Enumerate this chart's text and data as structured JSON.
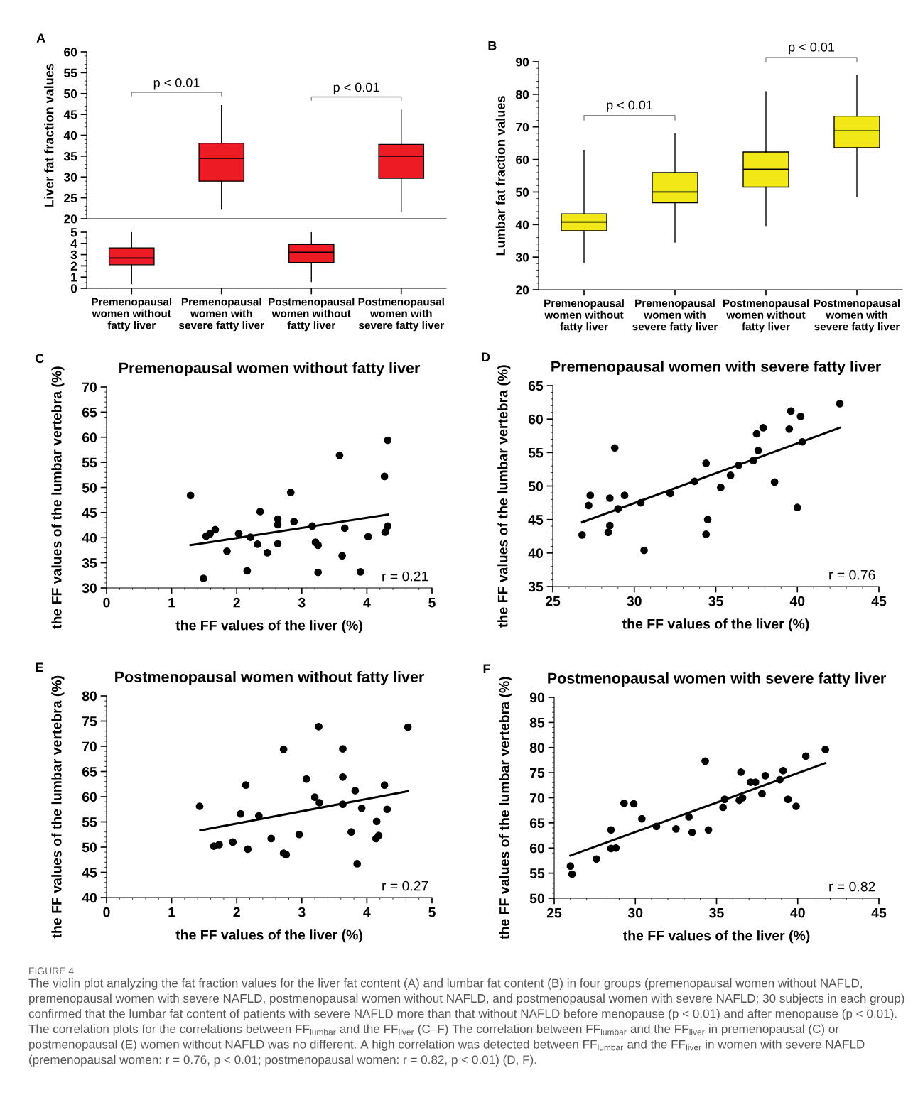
{
  "chart_data": [
    {
      "type": "box",
      "categories": [
        null,
        null,
        null,
        null
      ],
      "ylabel": "Liver fat fraction values",
      "ylim": [
        20,
        60
      ],
      "yticks": [
        20,
        25,
        30,
        35,
        40,
        45,
        50,
        55,
        60
      ],
      "annotations": [
        "A",
        "p < 0.01",
        "p < 0.01"
      ],
      "series": [
        {
          "color": "#ed1c24",
          "boxes": [
            null,
            {
              "low": 22.3,
              "q1": 29.0,
              "median": 34.5,
              "q3": 38.1,
              "high": 47.1
            },
            null,
            {
              "low": 21.6,
              "q1": 29.7,
              "median": 35.0,
              "q3": 37.8,
              "high": 46.0
            }
          ]
        }
      ]
    },
    {
      "type": "box",
      "categories": [
        "Premenopausal\nwomen without\nfatty liver",
        "Premenopausal\nwomen with\nsevere fatty liver",
        "Postmenopausal\nwomen without\nfatty liver",
        "Postmenopausal\nwomen with\nsevere fatty liver"
      ],
      "ylim": [
        0,
        5
      ],
      "yticks": [
        0,
        1,
        2,
        3,
        4,
        5
      ],
      "series": [
        {
          "color": "#ed1c24",
          "boxes": [
            {
              "low": 0.4,
              "q1": 2.1,
              "median": 2.7,
              "q3": 3.6,
              "high": 5.0
            },
            null,
            {
              "low": 0.6,
              "q1": 2.3,
              "median": 3.2,
              "q3": 3.9,
              "high": 5.0
            },
            null
          ]
        }
      ]
    },
    {
      "type": "box",
      "categories": [
        "Premenopausal\nwomen without\nfatty liver",
        "Premenopausal\nwomen with\nsevere fatty liver",
        "Postmenopausal\nwomen without\nfatty liver",
        "Postmenopausal\nwomen with\nsevere fatty liver"
      ],
      "ylabel": "Lumbar fat fraction values",
      "ylim": [
        20,
        90
      ],
      "yticks": [
        20,
        30,
        40,
        50,
        60,
        70,
        80,
        90
      ],
      "annotations": [
        "B",
        "p < 0.01",
        "p < 0.01"
      ],
      "series": [
        {
          "color": "#f2e717",
          "boxes": [
            {
              "low": 28.2,
              "q1": 38.1,
              "median": 40.8,
              "q3": 43.3,
              "high": 62.8
            },
            {
              "low": 34.6,
              "q1": 46.7,
              "median": 50.0,
              "q3": 56.0,
              "high": 67.9
            },
            {
              "low": 39.7,
              "q1": 51.5,
              "median": 57.0,
              "q3": 62.3,
              "high": 80.8
            },
            {
              "low": 48.6,
              "q1": 63.6,
              "median": 68.8,
              "q3": 73.3,
              "high": 85.7
            }
          ]
        }
      ]
    },
    {
      "type": "scatter",
      "title": "Premenopausal women without fatty liver",
      "xlabel": "the FF values of the liver (%)",
      "ylabel": "the FF values of the lumbar vertebra (%)",
      "xlim": [
        0,
        5
      ],
      "xticks": [
        0,
        1,
        2,
        3,
        4,
        5
      ],
      "ylim": [
        30,
        70
      ],
      "yticks": [
        30,
        35,
        40,
        45,
        50,
        55,
        60,
        65,
        70
      ],
      "annotations": [
        "C",
        "r = 0.21"
      ],
      "series": [
        {
          "type": "scatter",
          "marker": "circle",
          "color": "#000000",
          "x": [
            1.29,
            1.53,
            1.59,
            1.67,
            1.49,
            1.85,
            2.03,
            2.21,
            2.16,
            2.32,
            2.36,
            2.47,
            2.63,
            2.63,
            2.63,
            2.83,
            2.88,
            3.16,
            3.21,
            3.25,
            3.25,
            3.58,
            3.66,
            3.62,
            3.9,
            4.02,
            4.27,
            4.28,
            4.32,
            4.32
          ],
          "values": [
            48.4,
            40.3,
            40.8,
            41.6,
            31.9,
            37.3,
            40.8,
            40.1,
            33.4,
            38.7,
            45.2,
            37.0,
            43.7,
            42.6,
            38.8,
            49.0,
            43.2,
            42.3,
            39.1,
            38.5,
            33.1,
            56.4,
            41.9,
            36.4,
            33.2,
            40.2,
            52.2,
            41.1,
            59.4,
            42.3
          ]
        },
        {
          "type": "line",
          "color": "#000000",
          "x": [
            1.29,
            4.32
          ],
          "values": [
            38.5,
            44.6
          ]
        }
      ]
    },
    {
      "type": "scatter",
      "title": "Premenopausal women with severe fatty liver",
      "xlabel": "the FF values of the liver (%)",
      "ylabel": "the FF values of the lumbar vertebra (%)",
      "xlim": [
        25,
        45
      ],
      "xticks": [
        25,
        30,
        35,
        40,
        45
      ],
      "ylim": [
        35,
        65
      ],
      "yticks": [
        35,
        40,
        45,
        50,
        55,
        60,
        65
      ],
      "annotations": [
        "D",
        "r = 0.76"
      ],
      "series": [
        {
          "type": "scatter",
          "marker": "circle",
          "color": "#000000",
          "x": [
            26.8,
            27.2,
            27.3,
            28.4,
            28.5,
            28.5,
            28.8,
            29.0,
            29.4,
            30.4,
            30.6,
            32.2,
            33.7,
            34.4,
            34.4,
            34.5,
            35.3,
            35.9,
            36.4,
            37.3,
            37.5,
            37.6,
            37.9,
            38.6,
            39.5,
            39.6,
            40.0,
            40.2,
            40.3,
            42.6
          ],
          "values": [
            42.7,
            47.1,
            48.6,
            43.1,
            48.2,
            44.1,
            55.7,
            46.6,
            48.6,
            47.5,
            40.4,
            48.9,
            50.7,
            53.4,
            42.8,
            45.0,
            49.8,
            51.6,
            53.1,
            53.8,
            57.8,
            55.3,
            58.7,
            50.6,
            58.5,
            61.2,
            46.8,
            60.4,
            56.6,
            62.3
          ]
        },
        {
          "type": "line",
          "color": "#000000",
          "x": [
            26.8,
            42.6
          ],
          "values": [
            44.6,
            58.7
          ]
        }
      ]
    },
    {
      "type": "scatter",
      "title": "Postmenopausal women without fatty liver",
      "xlabel": "the FF values of the liver (%)",
      "ylabel": "the FF values of the lumbar vertebra (%)",
      "xlim": [
        0,
        5
      ],
      "xticks": [
        0,
        1,
        2,
        3,
        4,
        5
      ],
      "ylim": [
        40,
        80
      ],
      "yticks": [
        40,
        45,
        50,
        55,
        60,
        65,
        70,
        75,
        80
      ],
      "annotations": [
        "E",
        "r = 0.27"
      ],
      "series": [
        {
          "type": "scatter",
          "marker": "circle",
          "color": "#000000",
          "x": [
            1.43,
            1.65,
            1.73,
            1.94,
            2.06,
            2.14,
            2.17,
            2.34,
            2.53,
            2.72,
            2.72,
            2.76,
            2.96,
            3.07,
            3.2,
            3.26,
            3.27,
            3.63,
            3.63,
            3.63,
            3.76,
            3.82,
            3.85,
            3.92,
            4.14,
            4.18,
            4.15,
            4.27,
            4.31,
            4.63
          ],
          "values": [
            58.1,
            50.2,
            50.5,
            51.0,
            56.6,
            62.3,
            49.6,
            56.2,
            51.7,
            69.4,
            48.8,
            48.5,
            52.5,
            63.5,
            59.9,
            73.9,
            58.8,
            69.5,
            63.9,
            58.5,
            53.0,
            61.2,
            46.7,
            57.7,
            51.7,
            52.3,
            55.1,
            62.3,
            57.5,
            73.8
          ]
        },
        {
          "type": "line",
          "color": "#000000",
          "x": [
            1.44,
            4.63
          ],
          "values": [
            53.3,
            61.1
          ]
        }
      ]
    },
    {
      "type": "scatter",
      "title": "Postmenopausal women with severe fatty liver",
      "xlabel": "the FF values of the liver (%)",
      "ylabel": "the FF values of the lumbar vertebra (%)",
      "xlim": [
        25,
        45
      ],
      "xticks": [
        25,
        30,
        35,
        40,
        45
      ],
      "ylim": [
        50,
        90
      ],
      "yticks": [
        50,
        55,
        60,
        65,
        70,
        75,
        80,
        85,
        90
      ],
      "annotations": [
        "F",
        "r = 0.82",
        "FIGURE 4",
        "The violin plot analyzing the fat fraction values for the liver fat content (A) and lumbar fat content (B) in four groups (premenopausal women without NAFLD, premenopausal women with severe NAFLD, postmenopausal women without NAFLD, and postmenopausal women with severe NAFLD; 30 subjects in each group) confirmed that the lumbar fat content of patients with severe NAFLD more than that without NAFLD before menopause (p < 0.01) and after menopause (p < 0.01). The correlation plots for the correlations between FF$_{lumbar}$ and the FF$_{liver}$ (C–F) The correlation between FF$_{lumbar}$ and the FF$_{liver}$ in premenopausal (C) or postmenopausal (E) women without NAFLD was no different. A high correlation was detected between FF$_{lumbar}$ and the FF$_{liver}$ in women with severe NAFLD (premenopausal women: r = 0.76, p < 0.01; postmenopausal women: r = 0.82, p < 0.01) (D, F)."
      ],
      "series": [
        {
          "type": "scatter",
          "marker": "circle",
          "color": "#000000",
          "x": [
            26.0,
            26.1,
            27.6,
            28.5,
            28.5,
            28.8,
            29.3,
            29.9,
            30.4,
            31.3,
            32.5,
            33.3,
            33.5,
            34.3,
            34.5,
            35.4,
            35.5,
            36.4,
            36.5,
            36.6,
            37.1,
            37.4,
            37.8,
            38.0,
            38.9,
            39.1,
            39.4,
            39.9,
            40.5,
            41.7
          ],
          "values": [
            56.4,
            54.8,
            57.8,
            63.6,
            59.9,
            60.0,
            68.9,
            68.8,
            65.8,
            64.3,
            63.8,
            66.2,
            63.1,
            77.3,
            63.6,
            68.1,
            69.7,
            69.5,
            75.1,
            70.0,
            73.1,
            73.1,
            70.8,
            74.4,
            73.6,
            75.4,
            69.7,
            68.3,
            78.3,
            79.6
          ]
        },
        {
          "type": "line",
          "color": "#000000",
          "x": [
            26.0,
            41.7
          ],
          "values": [
            58.5,
            76.9
          ]
        }
      ]
    }
  ]
}
